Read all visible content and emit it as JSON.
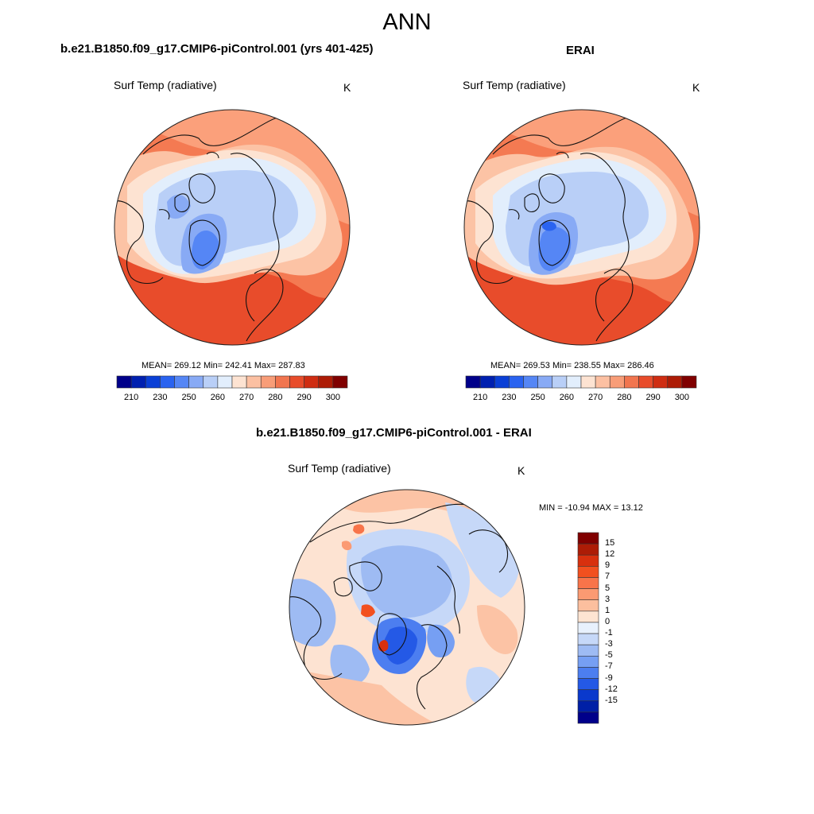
{
  "page": {
    "title": "ANN"
  },
  "panels": [
    {
      "id": "model",
      "case_title": "b.e21.B1850.f09_g17.CMIP6-piControl.001 (yrs 401-425)",
      "variable": "Surf Temp (radiative)",
      "units": "K",
      "stats": "MEAN= 269.12  Min= 242.41  Max= 287.83",
      "colorbar": {
        "colors": [
          "#00008a",
          "#0020b0",
          "#0a3fd6",
          "#2a63f0",
          "#5586f5",
          "#88aaf5",
          "#b9cff7",
          "#e2eefc",
          "#fde3d2",
          "#fcc0a2",
          "#f89d78",
          "#f1754f",
          "#e84c2b",
          "#cf2d12",
          "#ad1c06",
          "#800000"
        ],
        "tick_labels": [
          "210",
          "230",
          "250",
          "260",
          "270",
          "280",
          "290",
          "300"
        ]
      }
    },
    {
      "id": "obs",
      "case_title": "ERAI",
      "variable": "Surf Temp (radiative)",
      "units": "K",
      "stats": "MEAN= 269.53  Min= 238.55  Max= 286.46",
      "colorbar": {
        "colors": [
          "#00008a",
          "#0020b0",
          "#0a3fd6",
          "#2a63f0",
          "#5586f5",
          "#88aaf5",
          "#b9cff7",
          "#e2eefc",
          "#fde3d2",
          "#fcc0a2",
          "#f89d78",
          "#f1754f",
          "#e84c2b",
          "#cf2d12",
          "#ad1c06",
          "#800000"
        ],
        "tick_labels": [
          "210",
          "230",
          "250",
          "260",
          "270",
          "280",
          "290",
          "300"
        ]
      }
    },
    {
      "id": "diff",
      "case_title": "b.e21.B1850.f09_g17.CMIP6-piControl.001 - ERAI",
      "variable": "Surf Temp (radiative)",
      "units": "K",
      "stats": "MIN = -10.94 MAX =  13.12",
      "colorbar": {
        "colors": [
          "#800000",
          "#ad1c06",
          "#d8300e",
          "#f2501f",
          "#f8744a",
          "#fb9a72",
          "#fcbf9e",
          "#fee4d2",
          "#e8f1fd",
          "#c6d8f8",
          "#9ebbf3",
          "#769ff3",
          "#4c7ef0",
          "#2459e6",
          "#0a39cc",
          "#001fa6",
          "#00008a"
        ],
        "tick_labels": [
          "15",
          "12",
          "9",
          "7",
          "5",
          "3",
          "1",
          "0",
          "-1",
          "-3",
          "-5",
          "-7",
          "-9",
          "-12",
          "-15"
        ]
      }
    }
  ]
}
